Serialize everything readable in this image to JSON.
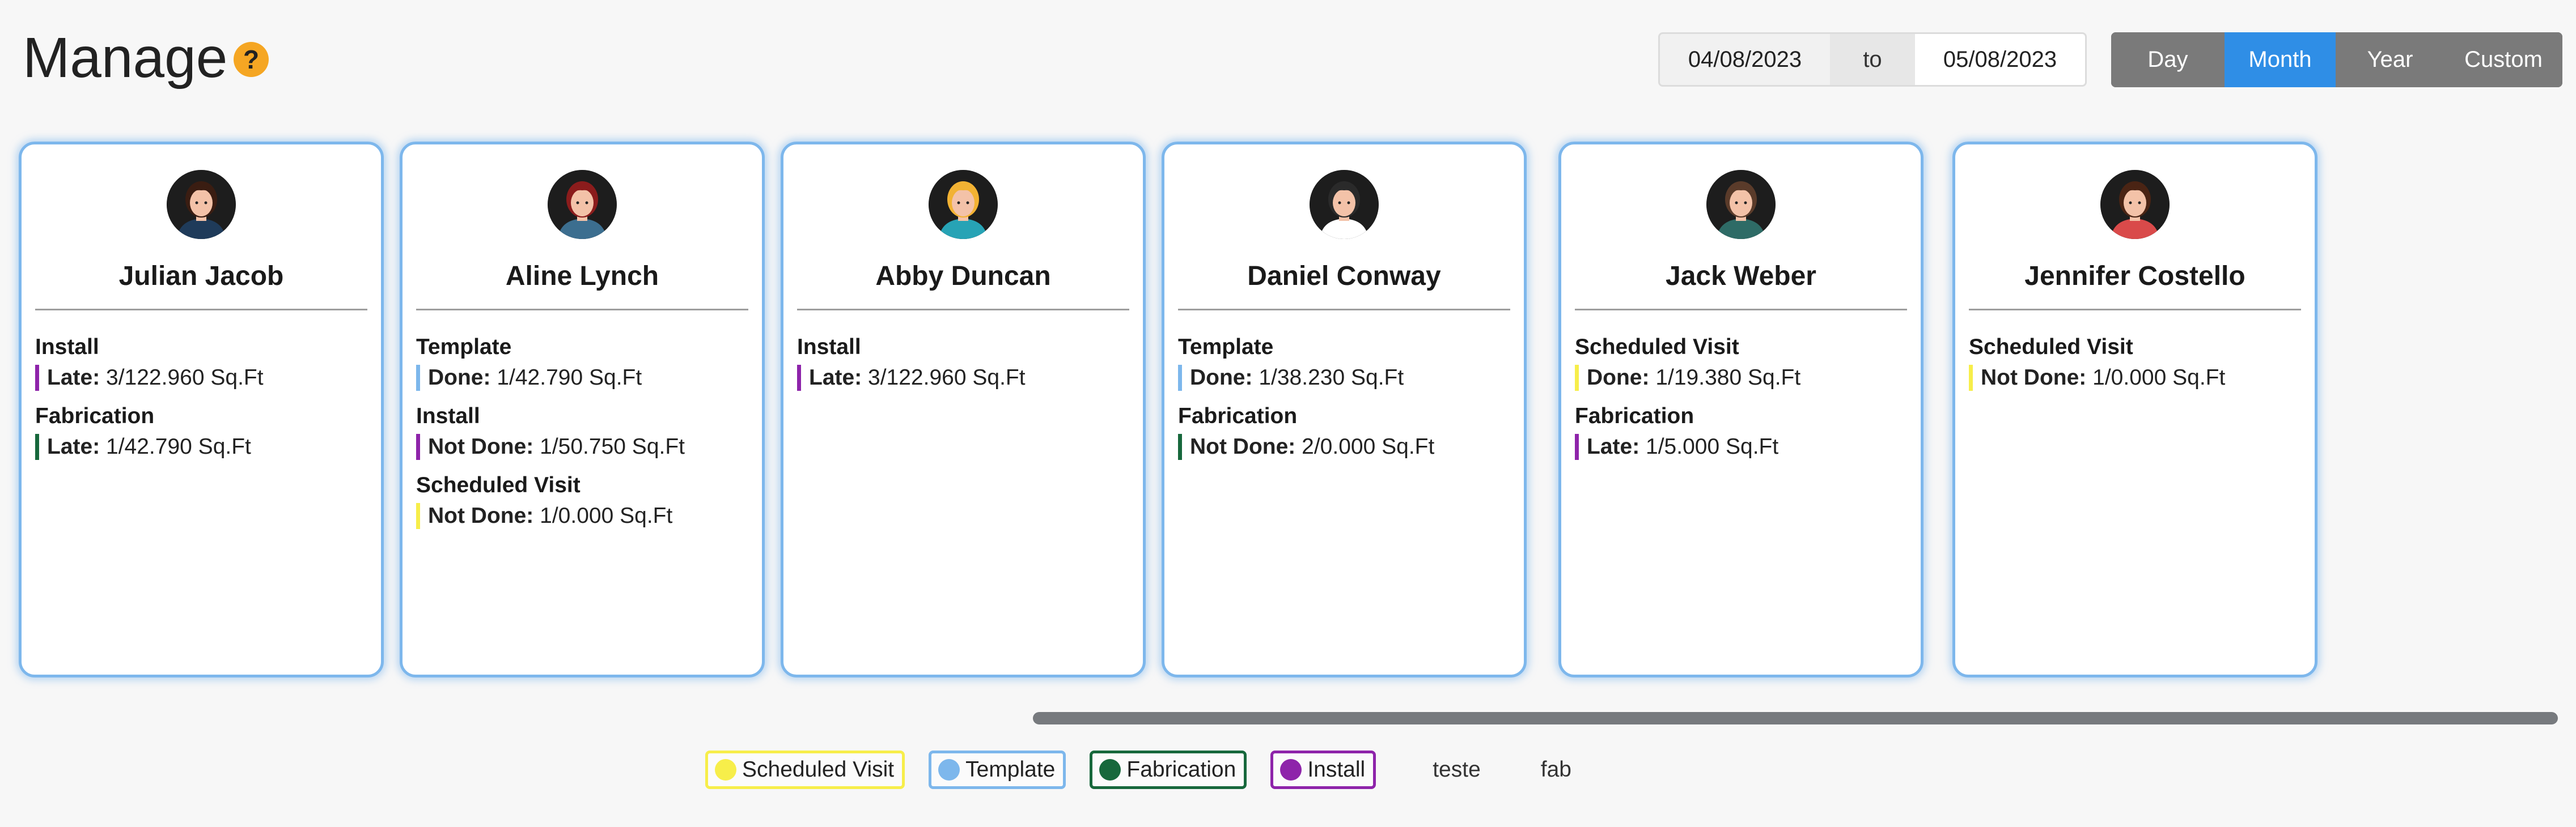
{
  "header": {
    "title": "Manage",
    "help_icon": "?",
    "date_from": "04/08/2023",
    "date_sep": "to",
    "date_to": "05/08/2023",
    "range_buttons": [
      {
        "label": "Day",
        "active": false
      },
      {
        "label": "Month",
        "active": true
      },
      {
        "label": "Year",
        "active": false
      },
      {
        "label": "Custom",
        "active": false
      }
    ]
  },
  "colors": {
    "scheduled_visit": "#f7ee4a",
    "template": "#7db7ec",
    "fabrication": "#17683c",
    "install": "#8e24aa",
    "card_border": "#7db7ec",
    "active_button": "#2f8ee6"
  },
  "cards": [
    {
      "name": "Julian Jacob",
      "avatar": {
        "icon": "avatar-female-dark-hair-icon",
        "skin": "#f3c2a8",
        "hair": "#3a1d12",
        "shirt": "#1f3b5a"
      },
      "tasks": [
        {
          "type": "Install",
          "status": "Late:",
          "value": "3/122.960 Sq.Ft",
          "color": "#8e24aa"
        },
        {
          "type": "Fabrication",
          "status": "Late:",
          "value": "1/42.790 Sq.Ft",
          "color": "#17683c"
        }
      ]
    },
    {
      "name": "Aline Lynch",
      "avatar": {
        "icon": "avatar-female-red-hair-icon",
        "skin": "#f3c2a8",
        "hair": "#8b1c1c",
        "shirt": "#3c6e8f"
      },
      "tasks": [
        {
          "type": "Template",
          "status": "Done:",
          "value": "1/42.790 Sq.Ft",
          "color": "#7db7ec"
        },
        {
          "type": "Install",
          "status": "Not Done:",
          "value": "1/50.750 Sq.Ft",
          "color": "#8e24aa"
        },
        {
          "type": "Scheduled Visit",
          "status": "Not Done:",
          "value": "1/0.000 Sq.Ft",
          "color": "#f7ee4a"
        }
      ]
    },
    {
      "name": "Abby Duncan",
      "avatar": {
        "icon": "avatar-female-blonde-hair-icon",
        "skin": "#f3c2a8",
        "hair": "#f2b233",
        "shirt": "#27a3b5"
      },
      "tasks": [
        {
          "type": "Install",
          "status": "Late:",
          "value": "3/122.960 Sq.Ft",
          "color": "#8e24aa"
        }
      ]
    },
    {
      "name": "Daniel Conway",
      "avatar": {
        "icon": "avatar-male-beard-icon",
        "skin": "#f3c2a8",
        "hair": "#2a2a2a",
        "shirt": "#ffffff"
      },
      "tasks": [
        {
          "type": "Template",
          "status": "Done:",
          "value": "1/38.230 Sq.Ft",
          "color": "#7db7ec"
        },
        {
          "type": "Fabrication",
          "status": "Not Done:",
          "value": "2/0.000 Sq.Ft",
          "color": "#17683c"
        }
      ]
    },
    {
      "name": "Jack Weber",
      "avatar": {
        "icon": "avatar-male-bald-beard-icon",
        "skin": "#f3c2a8",
        "hair": "#5a3b2a",
        "shirt": "#2e6b66"
      },
      "tasks": [
        {
          "type": "Scheduled Visit",
          "status": "Done:",
          "value": "1/19.380 Sq.Ft",
          "color": "#f7ee4a"
        },
        {
          "type": "Fabrication",
          "status": "Late:",
          "value": "1/5.000 Sq.Ft",
          "color": "#8e24aa"
        }
      ]
    },
    {
      "name": "Jennifer Costello",
      "avatar": {
        "icon": "avatar-female-brown-hair-icon",
        "skin": "#f3c2a8",
        "hair": "#4a2414",
        "shirt": "#d94a4a"
      },
      "tasks": [
        {
          "type": "Scheduled Visit",
          "status": "Not Done:",
          "value": "1/0.000 Sq.Ft",
          "color": "#f7ee4a"
        }
      ]
    }
  ],
  "legend": [
    {
      "label": "Scheduled Visit",
      "color": "#f7ee4a",
      "dot": true
    },
    {
      "label": "Template",
      "color": "#7db7ec",
      "dot": true
    },
    {
      "label": "Fabrication",
      "color": "#17683c",
      "dot": true
    },
    {
      "label": "Install",
      "color": "#8e24aa",
      "dot": true
    },
    {
      "label": "teste",
      "dot": false
    },
    {
      "label": "fab",
      "dot": false
    }
  ]
}
